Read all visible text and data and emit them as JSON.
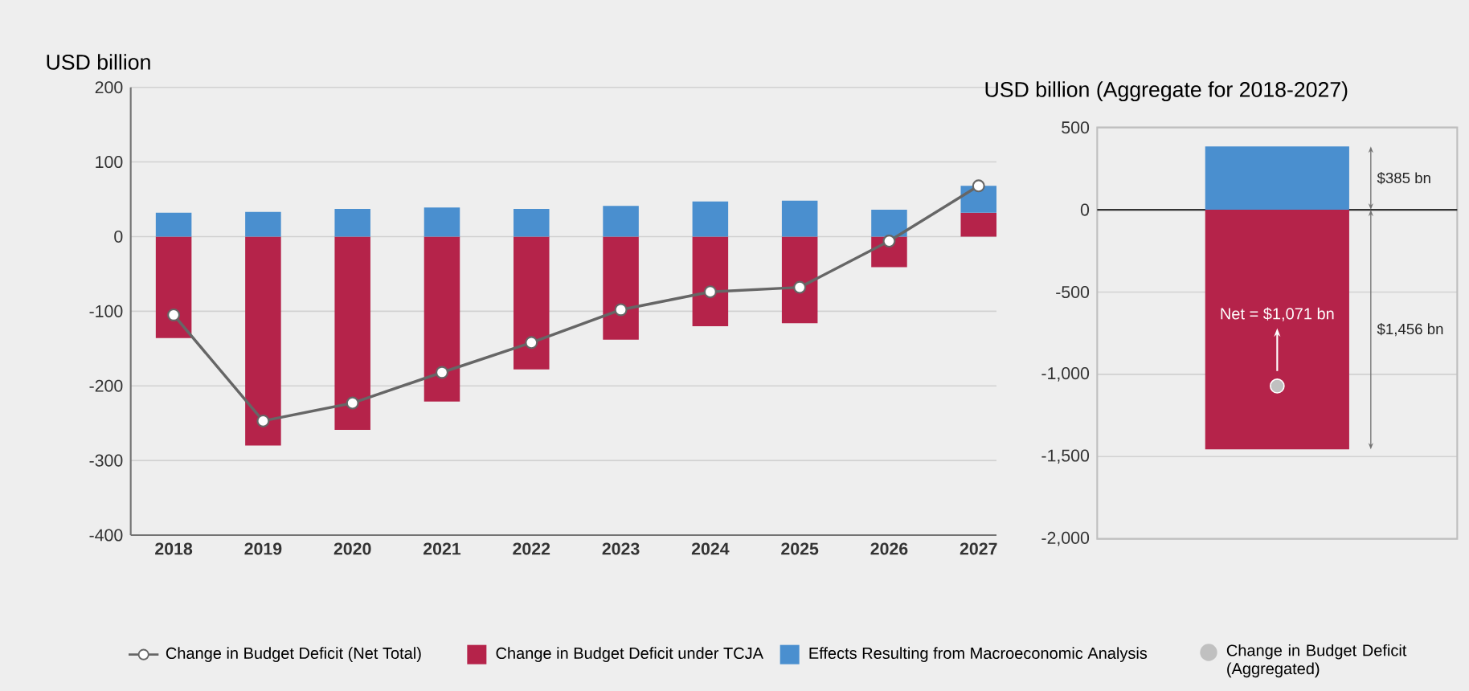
{
  "chart_data": [
    {
      "type": "bar",
      "ylabel": "USD billion",
      "stacked": true,
      "categories": [
        "2018",
        "2019",
        "2020",
        "2021",
        "2022",
        "2023",
        "2024",
        "2025",
        "2026",
        "2027"
      ],
      "series": [
        {
          "name": "Change in Budget Deficit (Net Total)",
          "type": "line",
          "color": "#666666",
          "marker": "circle",
          "values": [
            -105,
            -247,
            -223,
            -182,
            -142,
            -98,
            -74,
            -68,
            -6,
            68
          ]
        },
        {
          "name": "Change in Budget Deficit under TCJA",
          "color": "#b5234a",
          "values": [
            -136,
            -280,
            -259,
            -221,
            -178,
            -138,
            -120,
            -116,
            -41,
            32
          ]
        },
        {
          "name": "Effects Resulting from Macroeconomic Analysis",
          "color": "#4a8fcf",
          "values": [
            32,
            33,
            37,
            39,
            37,
            41,
            47,
            48,
            36,
            36
          ]
        }
      ],
      "ylim": [
        -400,
        200
      ],
      "yticks": [
        -400,
        -300,
        -200,
        -100,
        0,
        100,
        200
      ],
      "grid": "y",
      "legend": "bottom"
    },
    {
      "type": "bar",
      "ylabel": "USD billion (Aggregate for 2018-2027)",
      "stacked": true,
      "categories": [
        null
      ],
      "series": [
        {
          "color": "#b5234a",
          "values": [
            -1456
          ]
        },
        {
          "color": "#4a8fcf",
          "values": [
            385
          ]
        },
        {
          "name": "Change in Budget Deficit (Aggregated)",
          "type": "scatter",
          "color": "#c0c0c0",
          "marker": "circle",
          "values": [
            -1071
          ]
        }
      ],
      "annotations": [
        "$1,456 bn",
        "$385 bn",
        "Net = $1,071 bn"
      ],
      "ylim": [
        -2000,
        500
      ],
      "yticks": [
        {
          "value": -2000,
          "label": "-2,000"
        },
        {
          "value": -1500,
          "label": "-1,500"
        },
        {
          "value": -1000,
          "label": "-1,000"
        },
        -500,
        0,
        500
      ],
      "ref_lines": [
        {
          "axis": "y",
          "value": 0,
          "color": "#333333"
        }
      ],
      "grid": "y",
      "legend": "bottom"
    }
  ]
}
